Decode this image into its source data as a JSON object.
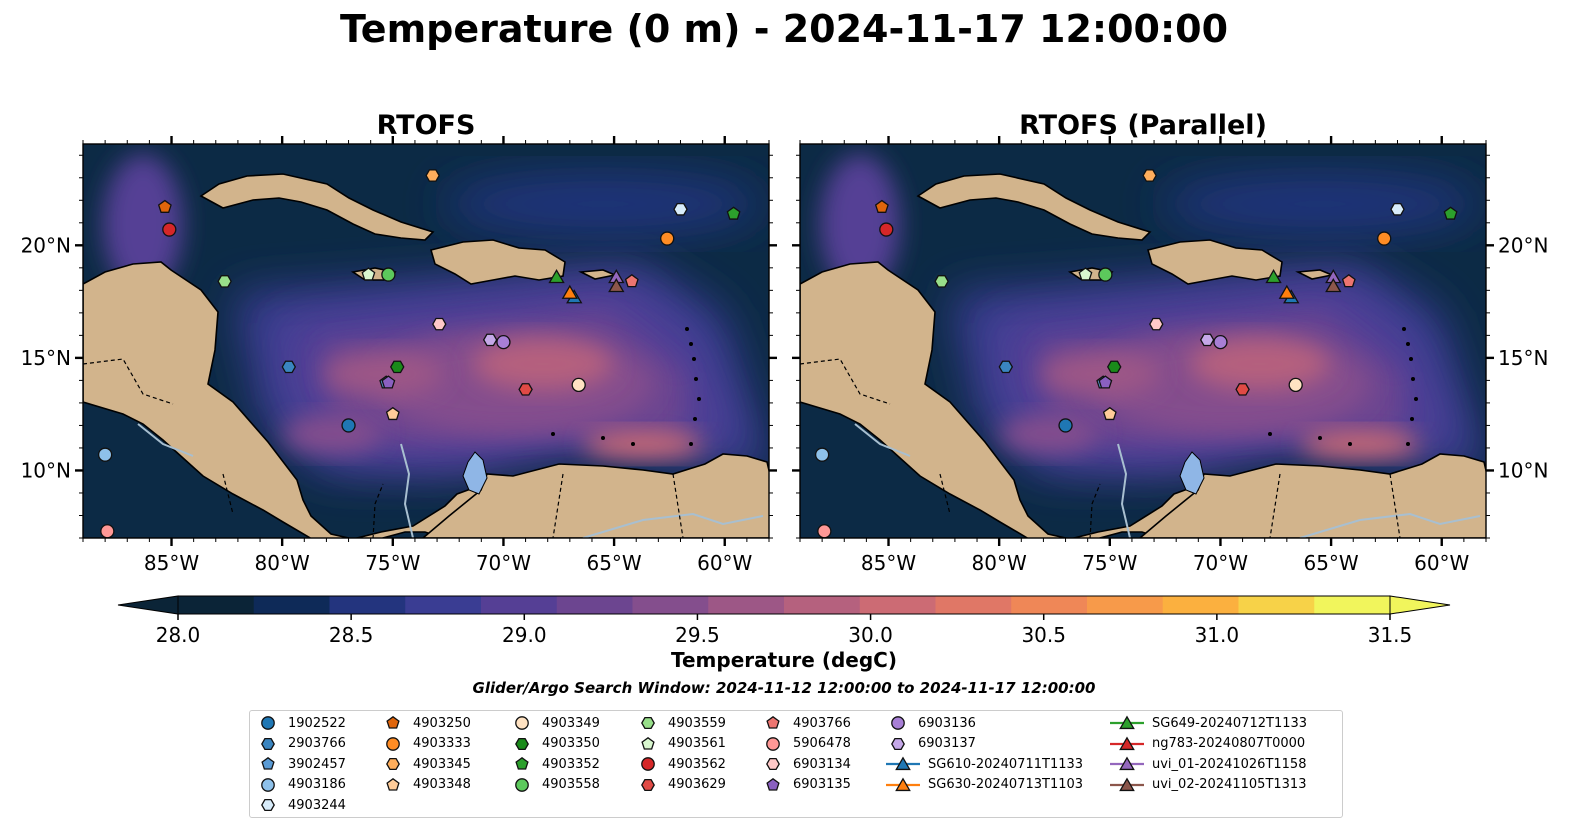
{
  "title": "Temperature (0 m) - 2024-11-17 12:00:00",
  "panels": [
    {
      "title": "RTOFS"
    },
    {
      "title": "RTOFS (Parallel)"
    }
  ],
  "map": {
    "lon_range": [
      -89,
      -58
    ],
    "lat_range": [
      7,
      24.5
    ],
    "lon_ticks": [
      "85°W",
      "80°W",
      "75°W",
      "70°W",
      "65°W",
      "60°W"
    ],
    "lon_tick_values": [
      -85,
      -80,
      -75,
      -70,
      -65,
      -60
    ],
    "lat_ticks": [
      "20°N",
      "15°N",
      "10°N"
    ],
    "lat_tick_values": [
      20,
      15,
      10
    ],
    "colors": {
      "ocean_deep": "#0c2a45",
      "land": "#d2b48c",
      "river": "#a8bfd0",
      "lake": "#8fb6e6"
    }
  },
  "colorbar": {
    "label": "Temperature (degC)",
    "ticks": [
      "28.0",
      "28.5",
      "29.0",
      "29.5",
      "30.0",
      "30.5",
      "31.0",
      "31.5"
    ],
    "tick_values": [
      28.0,
      28.5,
      29.0,
      29.5,
      30.0,
      30.5,
      31.0,
      31.5
    ],
    "range": [
      28.0,
      31.5
    ],
    "colors": [
      "#0b2437",
      "#0e2a58",
      "#23347e",
      "#3a3d93",
      "#553f95",
      "#6c4590",
      "#844e8d",
      "#9d5786",
      "#b5617e",
      "#cc6b74",
      "#e07766",
      "#ef8757",
      "#f79a4a",
      "#fbb03f",
      "#f7d248",
      "#f1f55c"
    ]
  },
  "search_window": "Glider/Argo Search Window: 2024-11-12 12:00:00 to 2024-11-17 12:00:00",
  "legend": [
    {
      "label": "1902522",
      "marker": "circle",
      "color": "#1f77b4"
    },
    {
      "label": "2903766",
      "marker": "hexagon",
      "color": "#3a85c0"
    },
    {
      "label": "3902457",
      "marker": "pentagon",
      "color": "#5a9bd5"
    },
    {
      "label": "4903186",
      "marker": "circle",
      "color": "#8ec1ea"
    },
    {
      "label": "4903244",
      "marker": "hexagon",
      "color": "#d8ecfa"
    },
    {
      "label": "4903250",
      "marker": "pentagon",
      "color": "#e0650b"
    },
    {
      "label": "4903333",
      "marker": "circle",
      "color": "#ff8c24"
    },
    {
      "label": "4903345",
      "marker": "hexagon",
      "color": "#ffae5c"
    },
    {
      "label": "4903348",
      "marker": "pentagon",
      "color": "#ffcc99"
    },
    {
      "label": "4903349",
      "marker": "circle",
      "color": "#ffe2c2"
    },
    {
      "label": "4903350",
      "marker": "hexagon",
      "color": "#1a8a1a"
    },
    {
      "label": "4903352",
      "marker": "pentagon",
      "color": "#2ca02c"
    },
    {
      "label": "4903558",
      "marker": "circle",
      "color": "#5cc95c"
    },
    {
      "label": "4903559",
      "marker": "hexagon",
      "color": "#98df8a"
    },
    {
      "label": "4903561",
      "marker": "pentagon",
      "color": "#d9f7cf"
    },
    {
      "label": "4903562",
      "marker": "circle",
      "color": "#d62728"
    },
    {
      "label": "4903629",
      "marker": "hexagon",
      "color": "#e04a45"
    },
    {
      "label": "4903766",
      "marker": "pentagon",
      "color": "#ed7570"
    },
    {
      "label": "5906478",
      "marker": "circle",
      "color": "#ff9896"
    },
    {
      "label": "6903134",
      "marker": "hexagon",
      "color": "#ffc9c8"
    },
    {
      "label": "6903135",
      "marker": "pentagon",
      "color": "#8a60c0"
    },
    {
      "label": "6903136",
      "marker": "circle",
      "color": "#a87fd6"
    },
    {
      "label": "6903137",
      "marker": "hexagon",
      "color": "#c5a8e8"
    },
    {
      "label": "SG610-20240711T1133",
      "marker": "triangle",
      "color": "#1f77b4"
    },
    {
      "label": "SG630-20240713T1103",
      "marker": "triangle",
      "color": "#ff7f0e"
    },
    {
      "label": "SG649-20240712T1133",
      "marker": "triangle",
      "color": "#2ca02c"
    },
    {
      "label": "ng783-20240807T0000",
      "marker": "triangle",
      "color": "#d62728"
    },
    {
      "label": "uvi_01-20241026T1158",
      "marker": "triangle",
      "color": "#9467bd"
    },
    {
      "label": "uvi_02-20241105T1313",
      "marker": "triangle",
      "color": "#8c564b"
    }
  ],
  "observations": [
    {
      "id": "1902522",
      "lon": -77.0,
      "lat": 12.0
    },
    {
      "id": "2903766",
      "lon": -79.7,
      "lat": 14.6
    },
    {
      "id": "3902457",
      "lon": -75.3,
      "lat": 13.9
    },
    {
      "id": "4903186",
      "lon": -88.0,
      "lat": 10.7
    },
    {
      "id": "4903244",
      "lon": -62.0,
      "lat": 21.6
    },
    {
      "id": "4903250",
      "lon": -85.3,
      "lat": 21.7
    },
    {
      "id": "4903333",
      "lon": -62.6,
      "lat": 20.3
    },
    {
      "id": "4903345",
      "lon": -73.2,
      "lat": 23.1
    },
    {
      "id": "4903348",
      "lon": -75.0,
      "lat": 12.5
    },
    {
      "id": "4903349",
      "lon": -66.6,
      "lat": 13.8
    },
    {
      "id": "4903350",
      "lon": -74.8,
      "lat": 14.6
    },
    {
      "id": "4903352",
      "lon": -59.6,
      "lat": 21.4
    },
    {
      "id": "4903558",
      "lon": -75.2,
      "lat": 18.7
    },
    {
      "id": "4903559",
      "lon": -82.6,
      "lat": 18.4
    },
    {
      "id": "4903561",
      "lon": -76.1,
      "lat": 18.7
    },
    {
      "id": "4903562",
      "lon": -85.1,
      "lat": 20.7
    },
    {
      "id": "4903629",
      "lon": -69.0,
      "lat": 13.6
    },
    {
      "id": "4903766",
      "lon": -64.2,
      "lat": 18.4
    },
    {
      "id": "5906478",
      "lon": -87.9,
      "lat": 7.3
    },
    {
      "id": "6903134",
      "lon": -72.9,
      "lat": 16.5
    },
    {
      "id": "6903135",
      "lon": -75.2,
      "lat": 13.9
    },
    {
      "id": "6903136",
      "lon": -70.0,
      "lat": 15.7
    },
    {
      "id": "6903137",
      "lon": -70.6,
      "lat": 15.8
    },
    {
      "id": "SG610-20240711T1133",
      "lon": -66.8,
      "lat": 17.7
    },
    {
      "id": "SG630-20240713T1103",
      "lon": -67.0,
      "lat": 17.9
    },
    {
      "id": "SG649-20240712T1133",
      "lon": -67.6,
      "lat": 18.6
    },
    {
      "id": "uvi_01-20241026T1158",
      "lon": -64.9,
      "lat": 18.6
    },
    {
      "id": "uvi_02-20241105T1313",
      "lon": -64.9,
      "lat": 18.2
    }
  ]
}
